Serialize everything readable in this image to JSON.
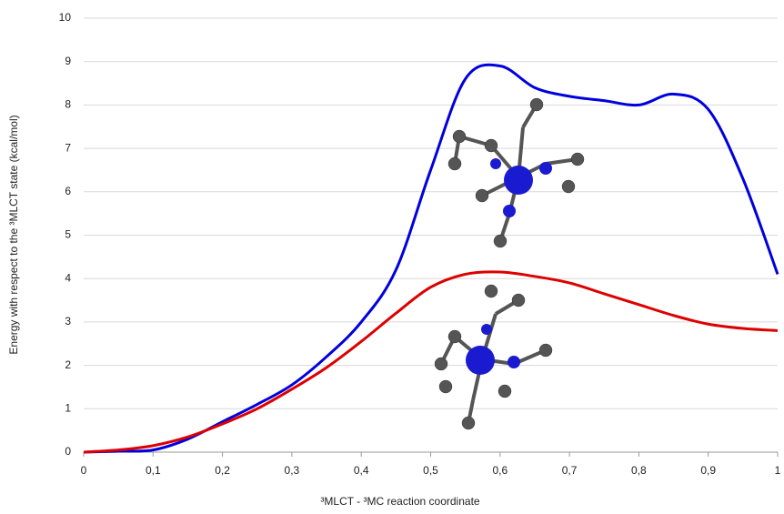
{
  "chart_data": {
    "type": "line",
    "x_label": "³MLCT - ³MC reaction coordinate",
    "y_label": "Energy with respect to the ³MLCT state (kcal/mol)",
    "x": [
      0,
      0.05,
      0.1,
      0.15,
      0.2,
      0.25,
      0.3,
      0.35,
      0.4,
      0.45,
      0.5,
      0.55,
      0.6,
      0.65,
      0.7,
      0.75,
      0.8,
      0.85,
      0.9,
      0.95,
      1
    ],
    "series": [
      {
        "color": "#0000dd",
        "values": [
          0,
          0.02,
          0.05,
          0.3,
          0.7,
          1.1,
          1.55,
          2.2,
          3.0,
          4.2,
          6.5,
          8.6,
          8.9,
          8.4,
          8.2,
          8.1,
          8.0,
          8.25,
          7.9,
          6.3,
          4.1
        ]
      },
      {
        "color": "#dd0000",
        "values": [
          0,
          0.05,
          0.15,
          0.35,
          0.65,
          1.0,
          1.45,
          1.95,
          2.55,
          3.2,
          3.8,
          4.1,
          4.15,
          4.05,
          3.9,
          3.65,
          3.4,
          3.15,
          2.95,
          2.85,
          2.8
        ]
      }
    ],
    "xlim": [
      0,
      1
    ],
    "xticks": [
      0,
      {
        "value": 0.1,
        "label": "0,1"
      },
      {
        "value": 0.2,
        "label": "0,2"
      },
      {
        "value": 0.3,
        "label": "0,3"
      },
      {
        "value": 0.4,
        "label": "0,4"
      },
      {
        "value": 0.5,
        "label": "0,5"
      },
      {
        "value": 0.6,
        "label": "0,6"
      },
      {
        "value": 0.7,
        "label": "0,7"
      },
      {
        "value": 0.8,
        "label": "0,8"
      },
      {
        "value": 0.9,
        "label": "0,9"
      },
      1
    ],
    "ylim": [
      0,
      10
    ],
    "yticks": [
      0,
      1,
      2,
      3,
      4,
      5,
      6,
      7,
      8,
      9,
      10
    ],
    "grid": true
  }
}
